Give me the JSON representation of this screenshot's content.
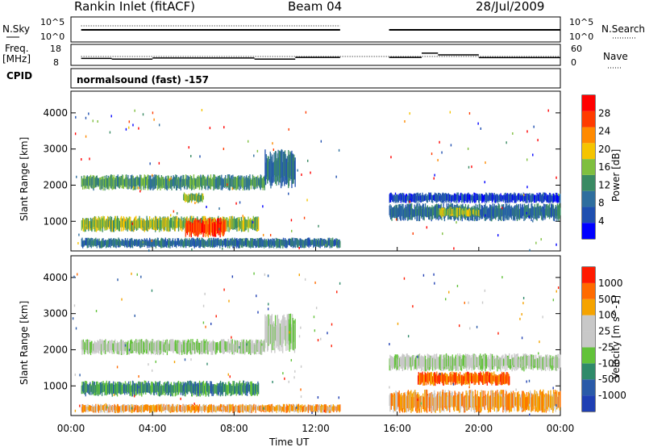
{
  "header": {
    "station": "Rankin Inlet (fitACF)",
    "beam": "Beam 04",
    "date": "28/Jul/2009"
  },
  "sidepanel": {
    "nsky_label": "N.Sky",
    "nsky_top": "10^5",
    "nsky_bottom": "10^0",
    "nsearch_label": "N.Search",
    "nsearch_top": "10^5",
    "nsearch_bottom": "10^0",
    "freq_label": "Freq.",
    "freq_unit": "[MHz]",
    "freq_top": "18",
    "freq_bottom": "8",
    "nave_label": "Nave",
    "nave_top": "60",
    "nave_bottom": "0",
    "cpid_label": "CPID",
    "cpid_value": "normalsound (fast) -157"
  },
  "x_axis": {
    "label": "Time UT",
    "ticks": [
      "00:00",
      "04:00",
      "08:00",
      "12:00",
      "16:00",
      "20:00",
      "00:00"
    ]
  },
  "colors": {
    "power_scale": [
      "#0000ff",
      "#1f4fb0",
      "#2f6e9e",
      "#3a8a63",
      "#7fbf3f",
      "#f5c400",
      "#ff8a00",
      "#ff3b00",
      "#ff0000"
    ],
    "velocity_scale": [
      "#1f3fb3",
      "#2a5aa8",
      "#2f8a6a",
      "#62c23a",
      "#c8c8c8",
      "#c8c8c8",
      "#f5a300",
      "#ff6a00",
      "#ff1a00"
    ]
  },
  "chart_data": [
    {
      "type": "heatmap",
      "title": "Power",
      "xlabel": "Time UT",
      "ylabel": "Slant Range [km]",
      "xlim": [
        0,
        24
      ],
      "ylim": [
        180,
        4600
      ],
      "yticks": [
        1000,
        2000,
        3000,
        4000
      ],
      "colorbar": {
        "label": "Power [dB]",
        "ticks": [
          "4",
          "8",
          "12",
          "16",
          "20",
          "24",
          "28"
        ],
        "range": [
          0,
          30
        ]
      },
      "data_gap_hours": [
        13.3,
        15.5
      ],
      "bands": [
        {
          "t0": 0.5,
          "t1": 9.5,
          "r0": 1850,
          "r1": 2300,
          "level": 10
        },
        {
          "t0": 5.5,
          "t1": 6.5,
          "r0": 1500,
          "r1": 1800,
          "level": 16
        },
        {
          "t0": 0.5,
          "t1": 9.2,
          "r0": 700,
          "r1": 1150,
          "level": 14
        },
        {
          "t0": 5.6,
          "t1": 7.6,
          "r0": 550,
          "r1": 1100,
          "level": 28
        },
        {
          "t0": 0.5,
          "t1": 13.2,
          "r0": 250,
          "r1": 550,
          "level": 6
        },
        {
          "t0": 9.5,
          "t1": 11.0,
          "r0": 1900,
          "r1": 3000,
          "level": 6
        },
        {
          "t0": 15.6,
          "t1": 24.0,
          "r0": 1000,
          "r1": 1500,
          "level": 8
        },
        {
          "t0": 15.6,
          "t1": 24.0,
          "r0": 1500,
          "r1": 1800,
          "level": 5
        },
        {
          "t0": 18.0,
          "t1": 20.0,
          "r0": 1100,
          "r1": 1400,
          "level": 14
        }
      ]
    },
    {
      "type": "heatmap",
      "title": "Velocity",
      "xlabel": "Time UT",
      "ylabel": "Slant Range [km]",
      "xlim": [
        0,
        24
      ],
      "ylim": [
        180,
        4600
      ],
      "yticks": [
        1000,
        2000,
        3000,
        4000
      ],
      "colorbar": {
        "label": "Velocity [m s^-1]",
        "ticks": [
          "1000",
          "500",
          "100",
          "25",
          "-25",
          "-100",
          "-500",
          "-1000"
        ],
        "range": [
          -1000,
          1000
        ]
      },
      "data_gap_hours": [
        13.3,
        15.5
      ],
      "bands": [
        {
          "t0": 0.5,
          "t1": 9.5,
          "r0": 1850,
          "r1": 2300,
          "level": 4
        },
        {
          "t0": 0.5,
          "t1": 9.2,
          "r0": 700,
          "r1": 1150,
          "level": 2
        },
        {
          "t0": 9.5,
          "t1": 11.0,
          "r0": 1900,
          "r1": 3000,
          "level": 4
        },
        {
          "t0": 0.5,
          "t1": 13.2,
          "r0": 250,
          "r1": 500,
          "level": 6
        },
        {
          "t0": 15.6,
          "t1": 24.0,
          "r0": 1400,
          "r1": 1900,
          "level": 4
        },
        {
          "t0": 17.0,
          "t1": 21.5,
          "r0": 1000,
          "r1": 1400,
          "level": 7
        },
        {
          "t0": 15.6,
          "t1": 24.0,
          "r0": 250,
          "r1": 900,
          "level": 6
        }
      ]
    }
  ],
  "timeseries": {
    "nsky_level": 0.55,
    "nsearch_level": 0.72,
    "freq_steps": [
      {
        "t0": 0.5,
        "t1": 2.0,
        "v": 11.3
      },
      {
        "t0": 2.0,
        "t1": 4.0,
        "v": 11.0
      },
      {
        "t0": 4.0,
        "t1": 9.0,
        "v": 11.5
      },
      {
        "t0": 9.0,
        "t1": 11.0,
        "v": 11.0
      },
      {
        "t0": 11.0,
        "t1": 13.2,
        "v": 11.8
      },
      {
        "t0": 15.6,
        "t1": 17.2,
        "v": 11.8
      },
      {
        "t0": 17.2,
        "t1": 18.0,
        "v": 13.8
      },
      {
        "t0": 18.0,
        "t1": 20.0,
        "v": 13.0
      },
      {
        "t0": 20.0,
        "t1": 24.0,
        "v": 11.7
      }
    ]
  }
}
